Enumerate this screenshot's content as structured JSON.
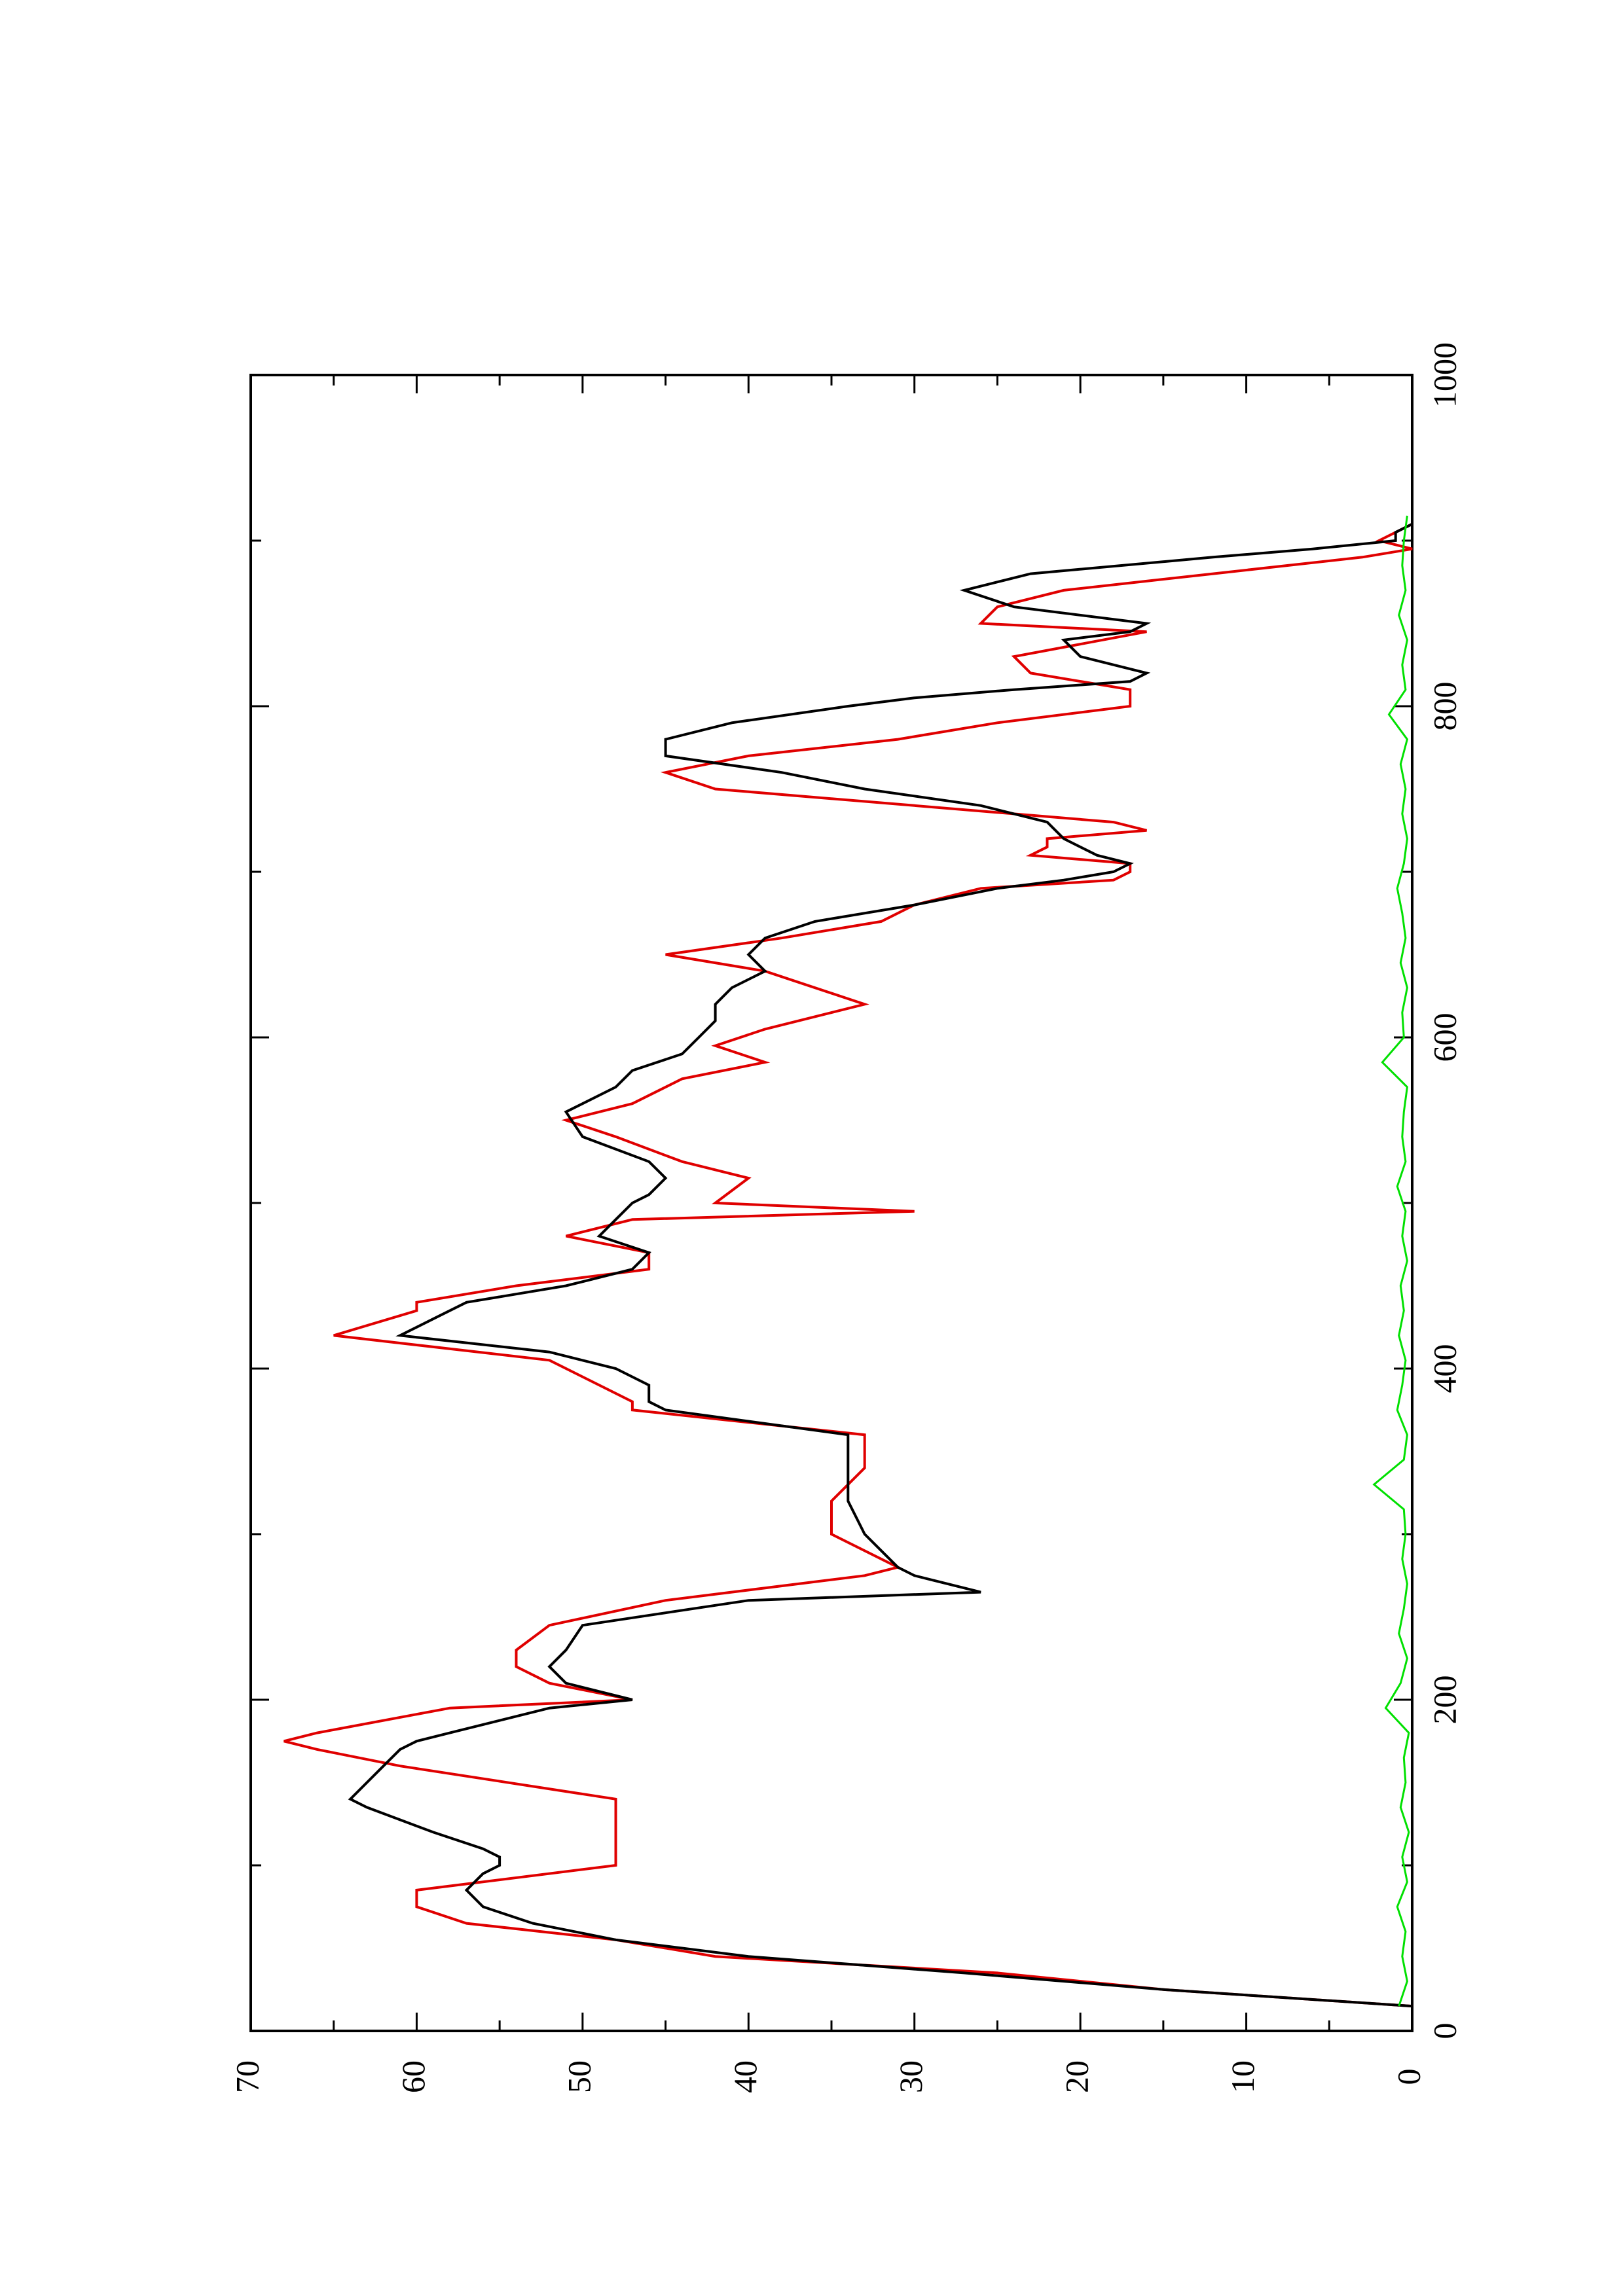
{
  "chart_data": {
    "type": "line",
    "title": "",
    "xlabel": "",
    "ylabel": "",
    "xlim": [
      0,
      1000
    ],
    "ylim": [
      0,
      70
    ],
    "x_ticks": [
      0,
      200,
      400,
      600,
      800,
      1000
    ],
    "y_ticks": [
      0,
      10,
      20,
      30,
      40,
      50,
      60,
      70
    ],
    "orientation": "rotated 90 degrees counter-clockwise (landscape plot on portrait page)",
    "grid": false,
    "legend": "none",
    "series": [
      {
        "color": "#e00000",
        "style": "step",
        "x": [
          0,
          15,
          25,
          35,
          45,
          55,
          65,
          75,
          85,
          100,
          120,
          140,
          160,
          170,
          175,
          180,
          195,
          200,
          210,
          220,
          230,
          245,
          260,
          275,
          280,
          300,
          320,
          340,
          360,
          375,
          380,
          405,
          420,
          435,
          440,
          450,
          460,
          470,
          480,
          490,
          495,
          500,
          515,
          525,
          540,
          550,
          560,
          575,
          585,
          595,
          605,
          620,
          640,
          650,
          660,
          670,
          680,
          690,
          695,
          700,
          705,
          710,
          715,
          720,
          725,
          730,
          740,
          750,
          760,
          770,
          780,
          790,
          800,
          805,
          810,
          820,
          830,
          845,
          850,
          860,
          870,
          880,
          890,
          895,
          900,
          910,
          915
        ],
        "y": [
          0,
          0,
          15,
          25,
          42,
          48,
          57,
          60,
          60,
          48,
          48,
          48,
          61,
          66,
          68,
          66,
          58,
          47,
          52,
          54,
          54,
          52,
          45,
          33,
          31,
          35,
          35,
          33,
          33,
          47,
          47,
          52,
          65,
          60,
          60,
          54,
          46,
          46,
          51,
          47,
          30,
          42,
          40,
          44,
          48,
          51,
          47,
          44,
          39,
          42,
          39,
          33,
          39,
          45,
          38,
          32,
          30,
          26,
          18,
          17,
          17,
          23,
          22,
          22,
          16,
          18,
          30,
          42,
          45,
          40,
          31,
          25,
          17,
          17,
          17,
          23,
          24,
          16,
          26,
          25,
          21,
          12,
          3,
          0,
          2,
          0,
          0
        ]
      },
      {
        "color": "#000000",
        "style": "line",
        "x": [
          0,
          15,
          25,
          35,
          45,
          55,
          65,
          75,
          85,
          95,
          100,
          105,
          110,
          120,
          135,
          140,
          150,
          160,
          170,
          175,
          180,
          195,
          200,
          210,
          220,
          230,
          245,
          260,
          265,
          275,
          280,
          300,
          320,
          340,
          360,
          375,
          380,
          390,
          400,
          410,
          420,
          430,
          440,
          445,
          450,
          460,
          470,
          480,
          490,
          500,
          505,
          515,
          525,
          540,
          555,
          570,
          580,
          590,
          600,
          610,
          620,
          630,
          640,
          650,
          660,
          670,
          680,
          690,
          695,
          700,
          705,
          710,
          720,
          730,
          740,
          750,
          760,
          770,
          780,
          790,
          800,
          805,
          810,
          815,
          820,
          830,
          840,
          845,
          850,
          860,
          870,
          880,
          890,
          895,
          900,
          905,
          910,
          915
        ],
        "y": [
          0,
          0,
          15,
          27,
          40,
          48,
          53,
          56,
          57,
          56,
          55,
          55,
          56,
          59,
          63,
          64,
          63,
          62,
          61,
          60,
          58,
          52,
          47,
          51,
          52,
          51,
          50,
          40,
          26,
          30,
          31,
          33,
          34,
          34,
          34,
          45,
          46,
          46,
          48,
          52,
          61,
          59,
          57,
          54,
          51,
          47,
          46,
          49,
          48,
          47,
          46,
          45,
          46,
          50,
          51,
          48,
          47,
          44,
          43,
          42,
          42,
          41,
          39,
          40,
          39,
          36,
          30,
          25,
          21,
          18,
          17,
          19,
          21,
          22,
          26,
          33,
          38,
          45,
          45,
          41,
          34,
          30,
          24,
          17,
          16,
          20,
          21,
          17,
          16,
          24,
          27,
          23,
          12,
          6,
          1,
          1,
          0,
          0
        ]
      },
      {
        "color": "#00e000",
        "style": "noise",
        "x": [
          15,
          30,
          45,
          60,
          75,
          90,
          105,
          120,
          135,
          150,
          165,
          180,
          195,
          210,
          225,
          240,
          255,
          270,
          285,
          300,
          315,
          330,
          345,
          360,
          375,
          390,
          405,
          420,
          435,
          450,
          465,
          480,
          495,
          510,
          525,
          540,
          555,
          570,
          585,
          600,
          615,
          630,
          645,
          660,
          675,
          690,
          705,
          720,
          735,
          750,
          765,
          780,
          795,
          810,
          825,
          840,
          855,
          870,
          885,
          900,
          915
        ],
        "y": [
          0.8,
          0.3,
          0.6,
          0.4,
          0.9,
          0.3,
          0.6,
          0.2,
          0.7,
          0.4,
          0.5,
          0.2,
          1.6,
          0.7,
          0.3,
          0.8,
          0.5,
          0.3,
          0.6,
          0.4,
          0.5,
          2.3,
          0.5,
          0.3,
          0.9,
          0.6,
          0.4,
          0.8,
          0.5,
          0.7,
          0.3,
          0.6,
          0.4,
          0.9,
          0.4,
          0.6,
          0.5,
          0.3,
          1.8,
          0.5,
          0.6,
          0.3,
          0.7,
          0.4,
          0.6,
          0.9,
          0.5,
          0.3,
          0.6,
          0.4,
          0.7,
          0.3,
          1.4,
          0.4,
          0.6,
          0.3,
          0.8,
          0.4,
          0.6,
          0.5,
          0.3
        ]
      }
    ]
  }
}
